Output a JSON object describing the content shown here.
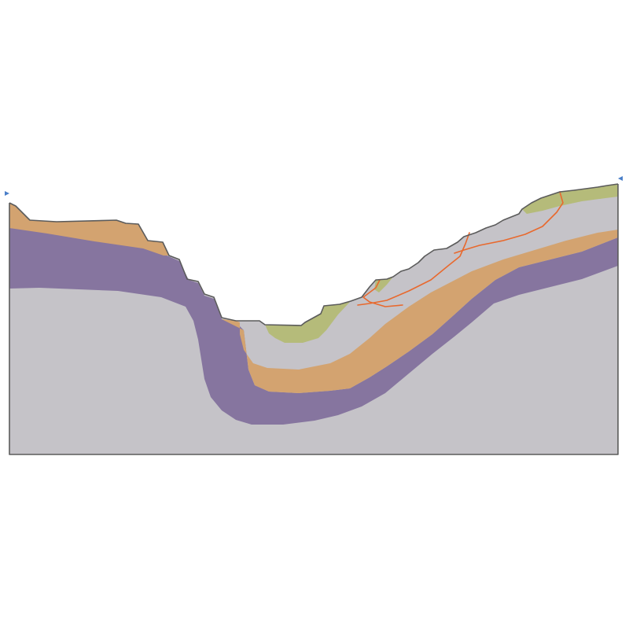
{
  "diagram": {
    "kind": "geological-cross-section",
    "colors": {
      "background": "#ffffff",
      "bedrock": "#c5c3c8",
      "purple_layer": "#86759f",
      "orange_layer": "#d3a370",
      "green_deposit": "#b5bb7a",
      "outline": "#5b5b5b",
      "slip_surface": "#e8692e",
      "boundary_marker": "#4a7fc9"
    },
    "layers": [
      {
        "id": "bedrock",
        "color_key": "bedrock"
      },
      {
        "id": "purple-layer",
        "color_key": "purple_layer"
      },
      {
        "id": "orange-layer",
        "color_key": "orange_layer"
      },
      {
        "id": "upper-grey-layer",
        "color_key": "bedrock"
      },
      {
        "id": "green-deposits",
        "color_key": "green_deposit"
      }
    ],
    "slip_surfaces_count": 3,
    "boundary_markers": [
      "left-boundary-marker",
      "right-boundary-marker"
    ]
  }
}
